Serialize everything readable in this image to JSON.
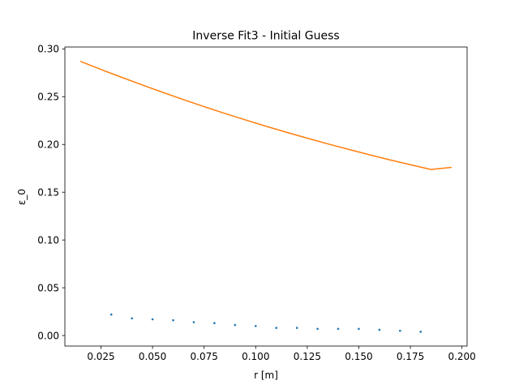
{
  "chart_data": {
    "type": "scatter",
    "title": "Inverse Fit3 - Initial Guess",
    "xlabel": "r [m]",
    "ylabel": "ε_0",
    "xlim": [
      0.0075,
      0.2025
    ],
    "ylim": [
      -0.011,
      0.302
    ],
    "x_ticks": [
      0.025,
      0.05,
      0.075,
      0.1,
      0.125,
      0.15,
      0.175,
      0.2
    ],
    "x_tick_labels": [
      "0.025",
      "0.050",
      "0.075",
      "0.100",
      "0.125",
      "0.150",
      "0.175",
      "0.200"
    ],
    "y_ticks": [
      0.0,
      0.05,
      0.1,
      0.15,
      0.2,
      0.25,
      0.3
    ],
    "y_tick_labels": [
      "0.00",
      "0.05",
      "0.10",
      "0.15",
      "0.20",
      "0.25",
      "0.30"
    ],
    "grid": false,
    "series": [
      {
        "kind": "scatter",
        "color": "#1f77b4",
        "x": [
          0.03,
          0.04,
          0.05,
          0.06,
          0.07,
          0.08,
          0.09,
          0.1,
          0.11,
          0.12,
          0.13,
          0.14,
          0.15,
          0.16,
          0.17,
          0.18
        ],
        "y": [
          0.022,
          0.018,
          0.017,
          0.016,
          0.014,
          0.013,
          0.011,
          0.01,
          0.008,
          0.008,
          0.007,
          0.007,
          0.007,
          0.006,
          0.005,
          0.004
        ]
      },
      {
        "kind": "line",
        "color": "#ff7f0e",
        "x": [
          0.015,
          0.025,
          0.035,
          0.045,
          0.055,
          0.065,
          0.075,
          0.085,
          0.095,
          0.105,
          0.115,
          0.125,
          0.135,
          0.145,
          0.155,
          0.165,
          0.175,
          0.185,
          0.195
        ],
        "y": [
          0.287,
          0.2785,
          0.2703,
          0.2623,
          0.2545,
          0.2469,
          0.2396,
          0.2325,
          0.2257,
          0.2191,
          0.2127,
          0.2066,
          0.2006,
          0.1949,
          0.1893,
          0.1839,
          0.1788,
          0.1738,
          0.176
        ]
      }
    ]
  }
}
